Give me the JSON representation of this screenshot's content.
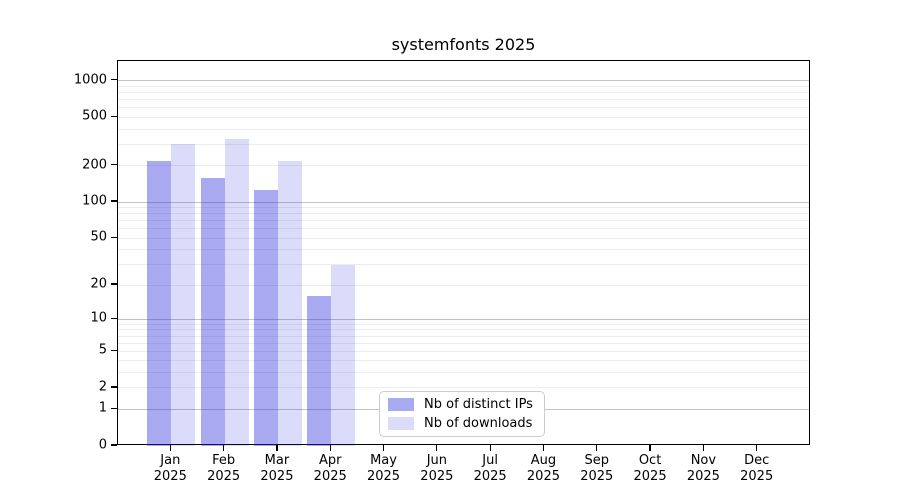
{
  "chart_data": {
    "type": "bar",
    "title": "systemfonts 2025",
    "categories": [
      "Jan",
      "Feb",
      "Mar",
      "Apr",
      "May",
      "Jun",
      "Jul",
      "Aug",
      "Sep",
      "Oct",
      "Nov",
      "Dec"
    ],
    "year": "2025",
    "series": [
      {
        "name": "Nb of distinct IPs",
        "color_base": "#2a2ae0",
        "alpha": 0.4,
        "values": [
          220,
          158,
          127,
          16,
          null,
          null,
          null,
          null,
          null,
          null,
          null,
          null
        ]
      },
      {
        "name": "Nb of downloads",
        "color_base": "#2a2ae0",
        "alpha": 0.17,
        "values": [
          305,
          330,
          220,
          30,
          null,
          null,
          null,
          null,
          null,
          null,
          null,
          null
        ]
      }
    ],
    "yscale": "log1p",
    "ylim": [
      0,
      1457
    ],
    "y_major_ticks": [
      0,
      1,
      2,
      5,
      10,
      20,
      50,
      100,
      200,
      500,
      1000
    ],
    "y_major_grid": [
      1,
      10,
      100,
      1000
    ],
    "y_minor_grid": [
      2,
      3,
      4,
      5,
      6,
      7,
      8,
      9,
      20,
      30,
      40,
      50,
      60,
      70,
      80,
      90,
      200,
      300,
      400,
      500,
      600,
      700,
      800,
      900
    ],
    "grid": "horizontal",
    "legend_position": "inside-bottom-center"
  },
  "colors": {
    "bar_ips_fill": "#aaaaf3",
    "bar_downloads_fill": "#dbdbfa",
    "grid_major": "#c3c3c3",
    "grid_minor": "#ececec",
    "spine": "#000000",
    "legend_border": "#cccccc"
  }
}
